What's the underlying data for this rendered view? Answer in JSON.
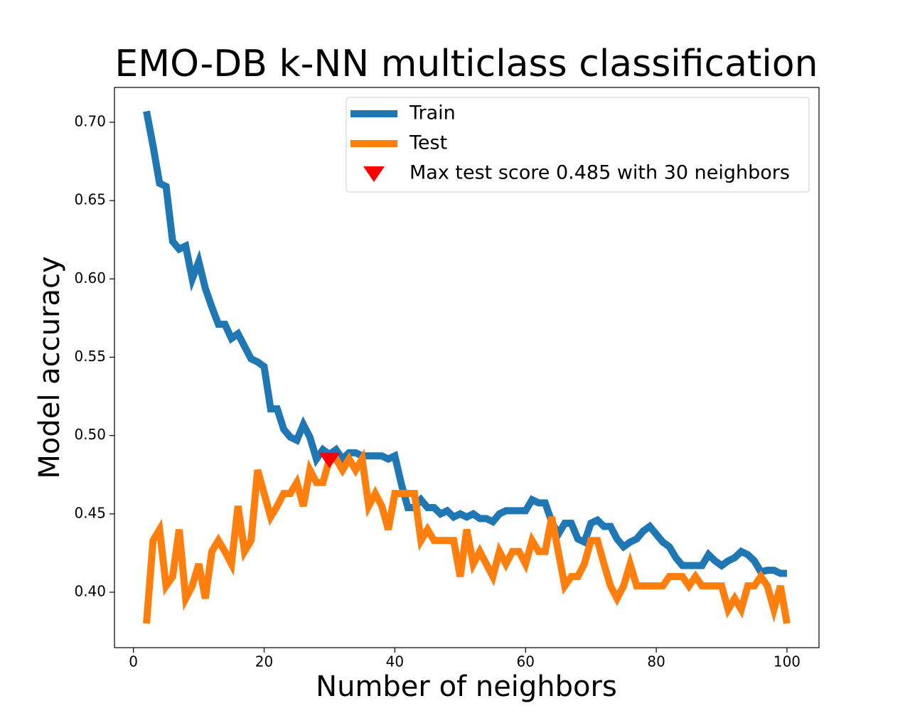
{
  "chart_data": {
    "type": "line",
    "title": "EMO-DB k-NN multiclass classification",
    "x_label": "Number of neighbors",
    "y_label": "Model accuracy",
    "x": [
      2,
      3,
      4,
      5,
      6,
      7,
      8,
      9,
      10,
      11,
      12,
      13,
      14,
      15,
      16,
      17,
      18,
      19,
      20,
      21,
      22,
      23,
      24,
      25,
      26,
      27,
      28,
      29,
      30,
      31,
      32,
      33,
      34,
      35,
      36,
      37,
      38,
      39,
      40,
      41,
      42,
      43,
      44,
      45,
      46,
      47,
      48,
      49,
      50,
      51,
      52,
      53,
      54,
      55,
      56,
      57,
      58,
      59,
      60,
      61,
      62,
      63,
      64,
      65,
      66,
      67,
      68,
      69,
      70,
      71,
      72,
      73,
      74,
      75,
      76,
      77,
      78,
      79,
      80,
      81,
      82,
      83,
      84,
      85,
      86,
      87,
      88,
      89,
      90,
      91,
      92,
      93,
      94,
      95,
      96,
      97,
      98,
      99,
      100
    ],
    "series": [
      {
        "name": "Train",
        "color": "#1f77b4",
        "values": [
          0.707,
          0.685,
          0.661,
          0.659,
          0.624,
          0.619,
          0.621,
          0.6,
          0.611,
          0.594,
          0.582,
          0.571,
          0.571,
          0.562,
          0.565,
          0.557,
          0.549,
          0.547,
          0.544,
          0.517,
          0.517,
          0.504,
          0.499,
          0.497,
          0.507,
          0.499,
          0.485,
          0.491,
          0.488,
          0.491,
          0.485,
          0.489,
          0.489,
          0.487,
          0.487,
          0.487,
          0.487,
          0.485,
          0.487,
          0.469,
          0.454,
          0.454,
          0.459,
          0.454,
          0.454,
          0.45,
          0.452,
          0.448,
          0.45,
          0.448,
          0.45,
          0.447,
          0.447,
          0.445,
          0.45,
          0.452,
          0.452,
          0.452,
          0.452,
          0.459,
          0.457,
          0.457,
          0.445,
          0.437,
          0.444,
          0.444,
          0.434,
          0.432,
          0.444,
          0.446,
          0.442,
          0.442,
          0.434,
          0.429,
          0.432,
          0.434,
          0.439,
          0.442,
          0.437,
          0.432,
          0.429,
          0.422,
          0.417,
          0.417,
          0.417,
          0.417,
          0.424,
          0.42,
          0.417,
          0.42,
          0.422,
          0.426,
          0.424,
          0.42,
          0.413,
          0.414,
          0.414,
          0.412,
          0.412
        ]
      },
      {
        "name": "Test",
        "color": "#ff7f0e",
        "values": [
          0.38,
          0.433,
          0.44,
          0.404,
          0.41,
          0.44,
          0.396,
          0.404,
          0.418,
          0.396,
          0.426,
          0.433,
          0.426,
          0.418,
          0.455,
          0.426,
          0.433,
          0.478,
          0.463,
          0.448,
          0.455,
          0.463,
          0.463,
          0.47,
          0.455,
          0.478,
          0.47,
          0.47,
          0.485,
          0.485,
          0.478,
          0.485,
          0.478,
          0.485,
          0.455,
          0.463,
          0.455,
          0.44,
          0.463,
          0.463,
          0.463,
          0.463,
          0.433,
          0.44,
          0.433,
          0.433,
          0.433,
          0.433,
          0.41,
          0.44,
          0.418,
          0.426,
          0.418,
          0.41,
          0.426,
          0.418,
          0.426,
          0.426,
          0.418,
          0.433,
          0.426,
          0.426,
          0.448,
          0.426,
          0.404,
          0.41,
          0.41,
          0.418,
          0.433,
          0.433,
          0.418,
          0.404,
          0.396,
          0.404,
          0.418,
          0.404,
          0.404,
          0.404,
          0.404,
          0.404,
          0.41,
          0.41,
          0.41,
          0.404,
          0.41,
          0.404,
          0.404,
          0.404,
          0.404,
          0.389,
          0.396,
          0.389,
          0.404,
          0.404,
          0.41,
          0.404,
          0.389,
          0.404,
          0.38
        ]
      }
    ],
    "marker": {
      "name": "Max test score 0.485 with 30 neighbors",
      "color": "#ff0000",
      "x": [
        30
      ],
      "values": [
        0.485
      ]
    },
    "xlim": [
      -2.9,
      104.9
    ],
    "ylim": [
      0.3646,
      0.7222
    ],
    "xticks": [
      0,
      20,
      40,
      60,
      80,
      100
    ],
    "yticks": [
      {
        "value": 0.4,
        "label": "0.40"
      },
      {
        "value": 0.45,
        "label": "0.45"
      },
      {
        "value": 0.5,
        "label": "0.50"
      },
      {
        "value": 0.55,
        "label": "0.55"
      },
      {
        "value": 0.6,
        "label": "0.60"
      },
      {
        "value": 0.65,
        "label": "0.65"
      },
      {
        "value": 0.7,
        "label": "0.70"
      }
    ],
    "legend": "upper right"
  }
}
